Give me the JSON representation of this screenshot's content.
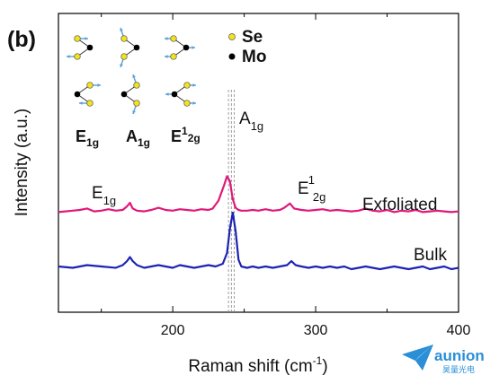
{
  "panel_label": "(b)",
  "chart_data": {
    "type": "line",
    "xlabel_main": "Raman shift (cm",
    "xlabel_sup": "-1",
    "xlabel_end": ")",
    "ylabel": "Intensity (a.u.)",
    "xlim": [
      120,
      400
    ],
    "xticks": [
      200,
      300,
      400
    ],
    "yticks": [],
    "grid": false,
    "reference_lines_x": [
      239,
      241,
      243
    ],
    "series": [
      {
        "name": "Exfoliated",
        "color": "#e0187a",
        "x": [
          120,
          130,
          135,
          140,
          145,
          150,
          155,
          160,
          165,
          168,
          170,
          172,
          175,
          180,
          185,
          190,
          195,
          200,
          205,
          210,
          215,
          220,
          225,
          228,
          232,
          236,
          238,
          240,
          242,
          244,
          246,
          248,
          252,
          256,
          260,
          265,
          270,
          275,
          278,
          282,
          285,
          290,
          295,
          300,
          305,
          310,
          315,
          320,
          325,
          330,
          335,
          340,
          345,
          350,
          355,
          360,
          365,
          370,
          375,
          380,
          385,
          390,
          395,
          400
        ],
        "y": [
          0.42,
          0.44,
          0.45,
          0.47,
          0.43,
          0.44,
          0.46,
          0.44,
          0.45,
          0.5,
          0.55,
          0.47,
          0.44,
          0.43,
          0.45,
          0.48,
          0.45,
          0.44,
          0.46,
          0.45,
          0.44,
          0.46,
          0.45,
          0.47,
          0.58,
          0.8,
          0.92,
          0.85,
          0.6,
          0.48,
          0.45,
          0.44,
          0.44,
          0.45,
          0.44,
          0.46,
          0.44,
          0.45,
          0.48,
          0.54,
          0.47,
          0.45,
          0.44,
          0.45,
          0.46,
          0.44,
          0.45,
          0.44,
          0.43,
          0.44,
          0.47,
          0.44,
          0.43,
          0.45,
          0.42,
          0.44,
          0.43,
          0.45,
          0.42,
          0.43,
          0.44,
          0.43,
          0.42,
          0.43
        ]
      },
      {
        "name": "Bulk",
        "color": "#1c22b4",
        "x": [
          120,
          130,
          140,
          150,
          160,
          165,
          168,
          170,
          172,
          175,
          180,
          185,
          190,
          195,
          200,
          205,
          210,
          215,
          220,
          225,
          230,
          235,
          238,
          240,
          242,
          244,
          246,
          248,
          252,
          256,
          260,
          265,
          270,
          275,
          280,
          283,
          286,
          290,
          295,
          300,
          305,
          310,
          315,
          320,
          325,
          330,
          335,
          340,
          345,
          350,
          355,
          360,
          365,
          370,
          375,
          380,
          385,
          390,
          395,
          400
        ],
        "y": [
          0.1,
          0.09,
          0.11,
          0.1,
          0.09,
          0.11,
          0.14,
          0.17,
          0.14,
          0.11,
          0.09,
          0.1,
          0.11,
          0.1,
          0.09,
          0.11,
          0.1,
          0.09,
          0.1,
          0.11,
          0.1,
          0.12,
          0.2,
          0.38,
          0.5,
          0.36,
          0.15,
          0.1,
          0.09,
          0.1,
          0.09,
          0.1,
          0.09,
          0.1,
          0.11,
          0.14,
          0.11,
          0.1,
          0.09,
          0.1,
          0.09,
          0.1,
          0.09,
          0.1,
          0.08,
          0.09,
          0.1,
          0.09,
          0.08,
          0.09,
          0.1,
          0.09,
          0.08,
          0.09,
          0.1,
          0.08,
          0.09,
          0.1,
          0.08,
          0.09
        ]
      }
    ],
    "annotations": [
      {
        "base": "E",
        "sub": "1g",
        "sup": "",
        "at_x": 168,
        "at_series": "Exfoliated"
      },
      {
        "base": "A",
        "sub": "1g",
        "sup": "",
        "at_x": 240,
        "at_series": "Exfoliated"
      },
      {
        "base": "E",
        "sub": "2g",
        "sup": "1",
        "at_x": 282,
        "at_series": "Exfoliated"
      }
    ]
  },
  "inset": {
    "legend": [
      {
        "label": "Se",
        "color": "#f2e41a"
      },
      {
        "label": "Mo",
        "color": "#000000"
      }
    ],
    "modes": [
      {
        "base": "E",
        "sub": "1g",
        "sup": ""
      },
      {
        "base": "A",
        "sub": "1g",
        "sup": ""
      },
      {
        "base": "E",
        "sub": "2g",
        "sup": "1"
      }
    ],
    "arrow_color": "#5aa0d8"
  },
  "watermark": {
    "text": "aunion",
    "subtext": "昊量光电",
    "color": "#2a8fd6"
  }
}
